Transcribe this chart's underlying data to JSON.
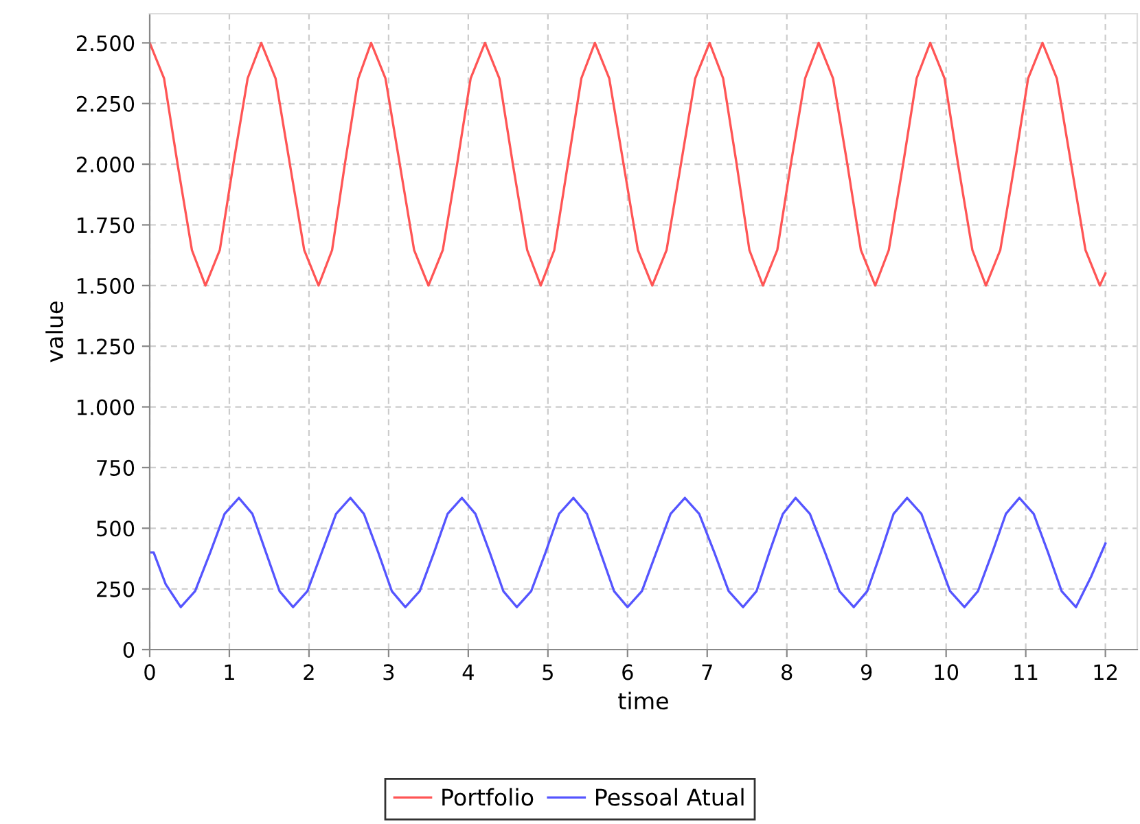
{
  "chart_data": {
    "type": "line",
    "xlabel": "time",
    "ylabel": "value",
    "xlim": [
      0,
      12.4
    ],
    "xticks": [
      0,
      1,
      2,
      3,
      4,
      5,
      6,
      7,
      8,
      9,
      10,
      11,
      12
    ],
    "ylim": [
      0,
      2620
    ],
    "yticks": [
      {
        "value": 0,
        "label": "0"
      },
      {
        "value": 250,
        "label": "250"
      },
      {
        "value": 500,
        "label": "500"
      },
      {
        "value": 750,
        "label": "750"
      },
      {
        "value": 1000,
        "label": "1.000"
      },
      {
        "value": 1250,
        "label": "1.250"
      },
      {
        "value": 1500,
        "label": "1.500"
      },
      {
        "value": 1750,
        "label": "1.750"
      },
      {
        "value": 2000,
        "label": "2.000"
      },
      {
        "value": 2250,
        "label": "2.250"
      },
      {
        "value": 2500,
        "label": "2.500"
      }
    ],
    "grid": true,
    "legend": "bottom",
    "line_style": "solid",
    "marker": "none",
    "series": [
      {
        "name": "Portfolio",
        "color": "#ff5555",
        "x": [
          0,
          0.18,
          0.35,
          0.53,
          0.7,
          0.88,
          1.05,
          1.23,
          1.4,
          1.58,
          1.76,
          1.94,
          2.12,
          2.29,
          2.45,
          2.62,
          2.78,
          2.96,
          3.14,
          3.32,
          3.5,
          3.68,
          3.86,
          4.03,
          4.21,
          4.39,
          4.56,
          4.74,
          4.91,
          5.08,
          5.25,
          5.42,
          5.59,
          5.77,
          5.95,
          6.13,
          6.31,
          6.49,
          6.67,
          6.85,
          7.03,
          7.2,
          7.37,
          7.53,
          7.7,
          7.88,
          8.05,
          8.23,
          8.4,
          8.58,
          8.76,
          8.93,
          9.11,
          9.28,
          9.46,
          9.63,
          9.8,
          9.98,
          10.15,
          10.33,
          10.5,
          10.68,
          10.86,
          11.03,
          11.21,
          11.39,
          11.57,
          11.75,
          11.93,
          12.0
        ],
        "values": [
          2500,
          2354,
          2000,
          1646,
          1500,
          1646,
          2000,
          2354,
          2500,
          2354,
          2000,
          1646,
          1500,
          1646,
          2000,
          2354,
          2500,
          2354,
          2000,
          1646,
          1500,
          1646,
          2000,
          2354,
          2500,
          2354,
          2000,
          1646,
          1500,
          1646,
          2000,
          2354,
          2500,
          2354,
          2000,
          1646,
          1500,
          1646,
          2000,
          2354,
          2500,
          2354,
          2000,
          1646,
          1500,
          1646,
          2000,
          2354,
          2500,
          2354,
          2000,
          1646,
          1500,
          1646,
          2000,
          2354,
          2500,
          2354,
          2000,
          1646,
          1500,
          1646,
          2000,
          2354,
          2500,
          2354,
          2000,
          1646,
          1500,
          1550
        ]
      },
      {
        "name": "Pessoal Atual",
        "color": "#5555ff",
        "x": [
          0,
          0.05,
          0.2,
          0.39,
          0.57,
          0.76,
          0.94,
          1.12,
          1.29,
          1.46,
          1.63,
          1.8,
          1.98,
          2.16,
          2.34,
          2.52,
          2.69,
          2.87,
          3.04,
          3.21,
          3.39,
          3.57,
          3.74,
          3.92,
          4.09,
          4.27,
          4.44,
          4.61,
          4.79,
          4.97,
          5.14,
          5.32,
          5.49,
          5.66,
          5.83,
          6.0,
          6.18,
          6.36,
          6.54,
          6.72,
          6.9,
          7.09,
          7.27,
          7.45,
          7.62,
          7.78,
          7.95,
          8.11,
          8.29,
          8.48,
          8.66,
          8.84,
          9.01,
          9.18,
          9.34,
          9.51,
          9.69,
          9.87,
          10.05,
          10.23,
          10.4,
          10.58,
          10.75,
          10.92,
          11.1,
          11.28,
          11.45,
          11.63,
          11.82,
          12.0
        ],
        "values": [
          400,
          400,
          270,
          175,
          241,
          400,
          559,
          625,
          559,
          400,
          241,
          175,
          241,
          400,
          559,
          625,
          559,
          400,
          241,
          175,
          241,
          400,
          559,
          625,
          559,
          400,
          241,
          175,
          241,
          400,
          559,
          625,
          559,
          400,
          241,
          175,
          241,
          400,
          559,
          625,
          559,
          400,
          241,
          175,
          241,
          400,
          559,
          625,
          559,
          400,
          241,
          175,
          241,
          400,
          559,
          625,
          559,
          400,
          241,
          175,
          241,
          400,
          559,
          625,
          559,
          400,
          241,
          175,
          300,
          437
        ]
      }
    ]
  }
}
